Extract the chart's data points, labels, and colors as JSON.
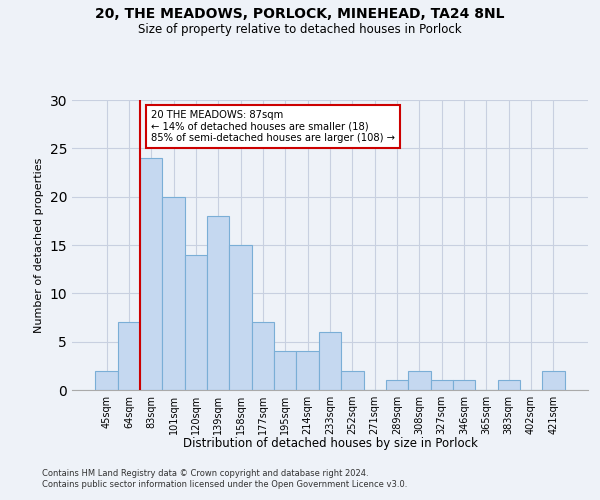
{
  "title_line1": "20, THE MEADOWS, PORLOCK, MINEHEAD, TA24 8NL",
  "title_line2": "Size of property relative to detached houses in Porlock",
  "xlabel": "Distribution of detached houses by size in Porlock",
  "ylabel": "Number of detached properties",
  "categories": [
    "45sqm",
    "64sqm",
    "83sqm",
    "101sqm",
    "120sqm",
    "139sqm",
    "158sqm",
    "177sqm",
    "195sqm",
    "214sqm",
    "233sqm",
    "252sqm",
    "271sqm",
    "289sqm",
    "308sqm",
    "327sqm",
    "346sqm",
    "365sqm",
    "383sqm",
    "402sqm",
    "421sqm"
  ],
  "values": [
    2,
    7,
    24,
    20,
    14,
    18,
    15,
    7,
    4,
    4,
    6,
    2,
    0,
    1,
    2,
    1,
    1,
    0,
    1,
    0,
    2
  ],
  "bar_color": "#c5d8f0",
  "bar_edgecolor": "#7aaed6",
  "vline_color": "#cc0000",
  "annotation_text": "20 THE MEADOWS: 87sqm\n← 14% of detached houses are smaller (18)\n85% of semi-detached houses are larger (108) →",
  "annotation_box_edgecolor": "#cc0000",
  "annotation_box_facecolor": "#ffffff",
  "ylim": [
    0,
    30
  ],
  "yticks": [
    0,
    5,
    10,
    15,
    20,
    25,
    30
  ],
  "footer_line1": "Contains HM Land Registry data © Crown copyright and database right 2024.",
  "footer_line2": "Contains public sector information licensed under the Open Government Licence v3.0.",
  "background_color": "#eef2f8",
  "grid_color": "#c8d0e0"
}
